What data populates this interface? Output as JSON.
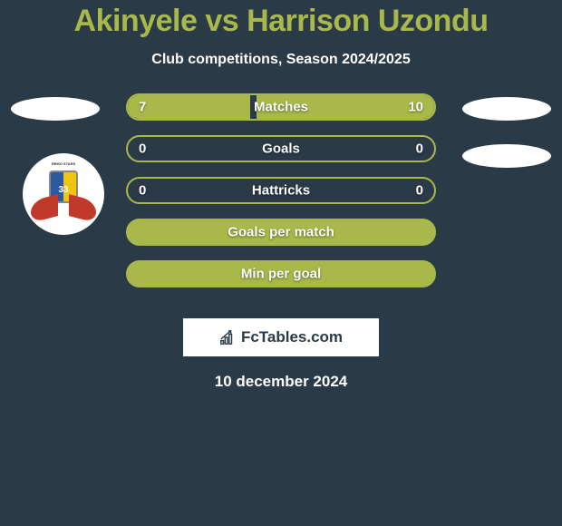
{
  "title": "Akinyele vs Harrison Uzondu",
  "subtitle": "Club competitions, Season 2024/2025",
  "colors": {
    "background": "#2a3b47",
    "accent": "#a8b84a",
    "text_light": "#ffffff"
  },
  "bars": [
    {
      "label": "Matches",
      "left_val": "7",
      "right_val": "10",
      "left_pct": 40,
      "right_pct": 58
    },
    {
      "label": "Goals",
      "left_val": "0",
      "right_val": "0",
      "left_pct": 0,
      "right_pct": 0
    },
    {
      "label": "Hattricks",
      "left_val": "0",
      "right_val": "0",
      "left_pct": 0,
      "right_pct": 0
    },
    {
      "label": "Goals per match",
      "left_val": "",
      "right_val": "",
      "left_pct": 100,
      "right_pct": 0,
      "full": true
    },
    {
      "label": "Min per goal",
      "left_val": "",
      "right_val": "",
      "left_pct": 100,
      "right_pct": 0,
      "full": true
    }
  ],
  "watermark": "FcTables.com",
  "date": "10 december 2024",
  "logo": {
    "top_text": "REMO STARS",
    "number": "33"
  }
}
